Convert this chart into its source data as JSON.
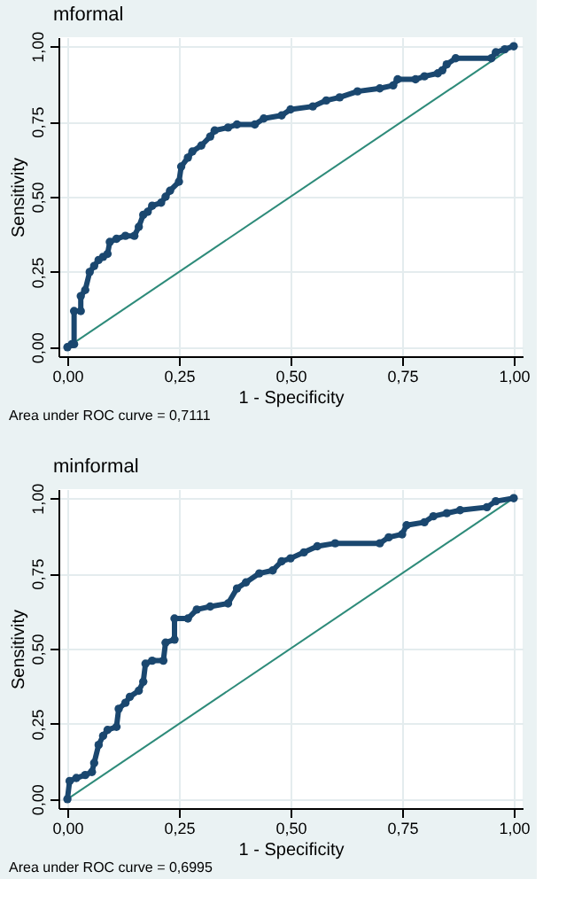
{
  "chart_data": [
    {
      "type": "line",
      "title": "mformal",
      "xlabel": "1 - Specificity",
      "ylabel": "Sensitivity",
      "annotations": [
        "Area under ROC curve = 0,7111"
      ],
      "xlim": [
        -0.02,
        1.02
      ],
      "ylim": [
        -0.03,
        1.03
      ],
      "xticks": [
        {
          "value": 0,
          "label": "0,00"
        },
        {
          "value": 0.25,
          "label": "0,25"
        },
        {
          "value": 0.5,
          "label": "0,50"
        },
        {
          "value": 0.75,
          "label": "0,75"
        },
        {
          "value": 1,
          "label": "1,00"
        }
      ],
      "yticks": [
        {
          "value": 0,
          "label": "0,00"
        },
        {
          "value": 0.25,
          "label": "0,25"
        },
        {
          "value": 0.5,
          "label": "0,50"
        },
        {
          "value": 0.75,
          "label": "0,75"
        },
        {
          "value": 1,
          "label": "1,00"
        }
      ],
      "grid": true,
      "marker": "circle",
      "series": [
        {
          "color": "#1a476f",
          "x": [
            0,
            0.01,
            0.015,
            0.015,
            0.03,
            0.03,
            0.04,
            0.05,
            0.06,
            0.07,
            0.08,
            0.09,
            0.095,
            0.11,
            0.13,
            0.15,
            0.16,
            0.17,
            0.18,
            0.19,
            0.21,
            0.22,
            0.23,
            0.25,
            0.255,
            0.27,
            0.28,
            0.3,
            0.32,
            0.33,
            0.36,
            0.38,
            0.42,
            0.44,
            0.48,
            0.5,
            0.55,
            0.58,
            0.61,
            0.65,
            0.7,
            0.73,
            0.74,
            0.78,
            0.8,
            0.83,
            0.84,
            0.85,
            0.87,
            0.95,
            0.96,
            0.98,
            1
          ],
          "values": [
            0,
            0.01,
            0.01,
            0.12,
            0.12,
            0.17,
            0.19,
            0.25,
            0.27,
            0.29,
            0.3,
            0.31,
            0.35,
            0.36,
            0.37,
            0.37,
            0.4,
            0.44,
            0.45,
            0.47,
            0.48,
            0.5,
            0.52,
            0.55,
            0.6,
            0.63,
            0.65,
            0.67,
            0.7,
            0.72,
            0.73,
            0.74,
            0.74,
            0.76,
            0.77,
            0.79,
            0.8,
            0.82,
            0.83,
            0.85,
            0.86,
            0.87,
            0.89,
            0.89,
            0.9,
            0.91,
            0.92,
            0.94,
            0.96,
            0.96,
            0.98,
            0.99,
            1
          ]
        },
        {
          "type": "line",
          "color": "#2e8b7a",
          "marker": "none",
          "x": [
            0,
            1
          ],
          "values": [
            0,
            1
          ]
        }
      ]
    },
    {
      "type": "line",
      "title": "minformal",
      "xlabel": "1 - Specificity",
      "ylabel": "Sensitivity",
      "annotations": [
        "Area under ROC curve = 0,6995"
      ],
      "xlim": [
        -0.02,
        1.02
      ],
      "ylim": [
        -0.03,
        1.03
      ],
      "xticks": [
        {
          "value": 0,
          "label": "0,00"
        },
        {
          "value": 0.25,
          "label": "0,25"
        },
        {
          "value": 0.5,
          "label": "0,50"
        },
        {
          "value": 0.75,
          "label": "0,75"
        },
        {
          "value": 1,
          "label": "1,00"
        }
      ],
      "yticks": [
        {
          "value": 0,
          "label": "0,00"
        },
        {
          "value": 0.25,
          "label": "0,25"
        },
        {
          "value": 0.5,
          "label": "0,50"
        },
        {
          "value": 0.75,
          "label": "0,75"
        },
        {
          "value": 1,
          "label": "1,00"
        }
      ],
      "grid": true,
      "marker": "circle",
      "series": [
        {
          "color": "#1a476f",
          "x": [
            0,
            0.005,
            0.02,
            0.04,
            0.055,
            0.06,
            0.07,
            0.08,
            0.09,
            0.11,
            0.115,
            0.13,
            0.14,
            0.16,
            0.17,
            0.175,
            0.19,
            0.215,
            0.22,
            0.24,
            0.24,
            0.27,
            0.29,
            0.32,
            0.36,
            0.38,
            0.4,
            0.43,
            0.46,
            0.48,
            0.5,
            0.53,
            0.56,
            0.6,
            0.7,
            0.72,
            0.75,
            0.76,
            0.8,
            0.82,
            0.85,
            0.88,
            0.94,
            0.96,
            1
          ],
          "values": [
            0,
            0.06,
            0.07,
            0.08,
            0.09,
            0.12,
            0.18,
            0.21,
            0.23,
            0.24,
            0.3,
            0.32,
            0.34,
            0.36,
            0.39,
            0.45,
            0.46,
            0.46,
            0.52,
            0.53,
            0.6,
            0.6,
            0.63,
            0.64,
            0.65,
            0.7,
            0.72,
            0.75,
            0.76,
            0.79,
            0.8,
            0.82,
            0.84,
            0.85,
            0.85,
            0.87,
            0.88,
            0.91,
            0.92,
            0.94,
            0.95,
            0.96,
            0.97,
            0.99,
            1
          ]
        },
        {
          "type": "line",
          "color": "#2e8b7a",
          "marker": "none",
          "x": [
            0,
            1
          ],
          "values": [
            0,
            1
          ]
        }
      ]
    }
  ]
}
